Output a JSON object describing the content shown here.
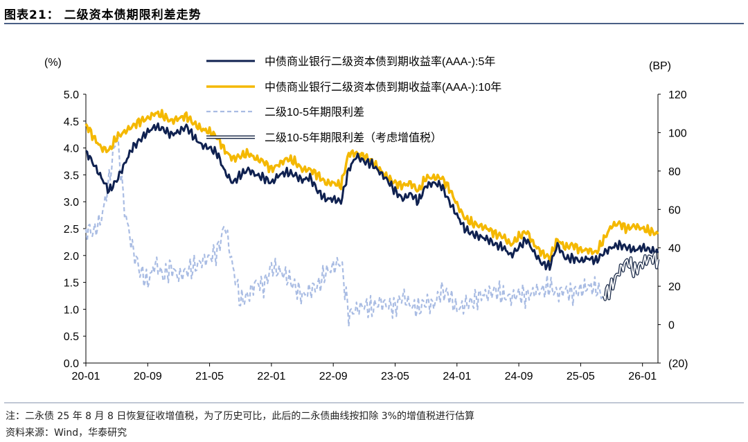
{
  "header": {
    "title": "图表21：  二级资本债期限利差走势"
  },
  "footer": {
    "note": "注：二永债 25 年 8 月 8 日恢复征收增值税，为了历史可比，此后的二永债曲线按扣除 3%的增值税进行估算",
    "source": "资料来源：Wind，华泰研究"
  },
  "colors": {
    "y5": "#0f2150",
    "y10": "#f4b800",
    "spread": "#a9bce3",
    "spread_tax_fill": "#ffffff",
    "spread_tax_edge": "#23324f",
    "title_rule": "#4a5f85"
  },
  "chart_data": {
    "type": "line",
    "left_unit_label": "(%)",
    "right_unit_label": "(BP)",
    "left_axis": {
      "min": 0,
      "max": 5,
      "ticks": [
        "0.0",
        "0.5",
        "1.0",
        "1.5",
        "2.0",
        "2.5",
        "3.0",
        "3.5",
        "4.0",
        "4.5",
        "5.0"
      ]
    },
    "right_axis": {
      "min": -20,
      "max": 120,
      "ticks": [
        "(20)",
        "0",
        "20",
        "40",
        "60",
        "80",
        "100",
        "120"
      ]
    },
    "x_tick_labels": [
      "20-01",
      "20-09",
      "21-05",
      "22-01",
      "22-09",
      "23-05",
      "24-01",
      "24-09",
      "25-05",
      "26-01"
    ],
    "x_range": [
      "2020-01",
      "2026-03"
    ],
    "series": [
      {
        "name": "中债商业银行二级资本债到期收益率(AAA-):5年",
        "axis": "left",
        "style": "solid-navy",
        "points": [
          [
            "2020-01",
            3.95
          ],
          [
            "2020-02",
            3.7
          ],
          [
            "2020-03",
            3.45
          ],
          [
            "2020-04",
            3.2
          ],
          [
            "2020-05",
            3.4
          ],
          [
            "2020-06",
            3.7
          ],
          [
            "2020-07",
            4.0
          ],
          [
            "2020-08",
            4.15
          ],
          [
            "2020-09",
            4.3
          ],
          [
            "2020-10",
            4.4
          ],
          [
            "2020-11",
            4.35
          ],
          [
            "2020-12",
            4.25
          ],
          [
            "2021-01",
            4.3
          ],
          [
            "2021-02",
            4.4
          ],
          [
            "2021-03",
            4.2
          ],
          [
            "2021-04",
            4.05
          ],
          [
            "2021-05",
            4.0
          ],
          [
            "2021-06",
            3.9
          ],
          [
            "2021-07",
            3.55
          ],
          [
            "2021-08",
            3.35
          ],
          [
            "2021-09",
            3.5
          ],
          [
            "2021-10",
            3.6
          ],
          [
            "2021-11",
            3.5
          ],
          [
            "2021-12",
            3.45
          ],
          [
            "2022-01",
            3.35
          ],
          [
            "2022-02",
            3.5
          ],
          [
            "2022-03",
            3.55
          ],
          [
            "2022-04",
            3.5
          ],
          [
            "2022-05",
            3.4
          ],
          [
            "2022-06",
            3.45
          ],
          [
            "2022-07",
            3.2
          ],
          [
            "2022-08",
            3.05
          ],
          [
            "2022-09",
            3.05
          ],
          [
            "2022-10",
            3.0
          ],
          [
            "2022-11",
            3.6
          ],
          [
            "2022-12",
            3.85
          ],
          [
            "2023-01",
            3.75
          ],
          [
            "2023-02",
            3.7
          ],
          [
            "2023-03",
            3.55
          ],
          [
            "2023-04",
            3.4
          ],
          [
            "2023-05",
            3.2
          ],
          [
            "2023-06",
            3.05
          ],
          [
            "2023-07",
            3.15
          ],
          [
            "2023-08",
            3.0
          ],
          [
            "2023-09",
            3.3
          ],
          [
            "2023-10",
            3.35
          ],
          [
            "2023-11",
            3.3
          ],
          [
            "2023-12",
            3.0
          ],
          [
            "2024-01",
            2.75
          ],
          [
            "2024-02",
            2.5
          ],
          [
            "2024-03",
            2.4
          ],
          [
            "2024-04",
            2.35
          ],
          [
            "2024-05",
            2.3
          ],
          [
            "2024-06",
            2.2
          ],
          [
            "2024-07",
            2.15
          ],
          [
            "2024-08",
            2.0
          ],
          [
            "2024-09",
            2.15
          ],
          [
            "2024-10",
            2.3
          ],
          [
            "2024-11",
            2.05
          ],
          [
            "2024-12",
            1.85
          ],
          [
            "2025-01",
            1.8
          ],
          [
            "2025-02",
            2.2
          ],
          [
            "2025-03",
            1.95
          ],
          [
            "2025-04",
            1.95
          ],
          [
            "2025-05",
            1.9
          ],
          [
            "2025-06",
            1.95
          ],
          [
            "2025-07",
            1.9
          ],
          [
            "2025-08",
            2.05
          ],
          [
            "2025-09",
            2.15
          ],
          [
            "2025-10",
            2.2
          ],
          [
            "2025-11",
            2.15
          ],
          [
            "2025-12",
            2.1
          ],
          [
            "2026-01",
            2.15
          ],
          [
            "2026-02",
            2.1
          ],
          [
            "2026-03",
            2.05
          ]
        ]
      },
      {
        "name": "中债商业银行二级资本债到期收益率(AAA-):10年",
        "axis": "left",
        "style": "solid-gold",
        "points": [
          [
            "2020-01",
            4.45
          ],
          [
            "2020-02",
            4.2
          ],
          [
            "2020-03",
            4.0
          ],
          [
            "2020-04",
            3.95
          ],
          [
            "2020-05",
            4.2
          ],
          [
            "2020-06",
            4.3
          ],
          [
            "2020-07",
            4.4
          ],
          [
            "2020-08",
            4.5
          ],
          [
            "2020-09",
            4.55
          ],
          [
            "2020-10",
            4.65
          ],
          [
            "2020-11",
            4.6
          ],
          [
            "2020-12",
            4.5
          ],
          [
            "2021-01",
            4.55
          ],
          [
            "2021-02",
            4.6
          ],
          [
            "2021-03",
            4.45
          ],
          [
            "2021-04",
            4.35
          ],
          [
            "2021-05",
            4.3
          ],
          [
            "2021-06",
            4.2
          ],
          [
            "2021-07",
            3.95
          ],
          [
            "2021-08",
            3.8
          ],
          [
            "2021-09",
            3.85
          ],
          [
            "2021-10",
            3.9
          ],
          [
            "2021-11",
            3.8
          ],
          [
            "2021-12",
            3.75
          ],
          [
            "2022-01",
            3.6
          ],
          [
            "2022-02",
            3.7
          ],
          [
            "2022-03",
            3.8
          ],
          [
            "2022-04",
            3.75
          ],
          [
            "2022-05",
            3.6
          ],
          [
            "2022-06",
            3.6
          ],
          [
            "2022-07",
            3.5
          ],
          [
            "2022-08",
            3.35
          ],
          [
            "2022-09",
            3.35
          ],
          [
            "2022-10",
            3.3
          ],
          [
            "2022-11",
            3.9
          ],
          [
            "2022-12",
            3.9
          ],
          [
            "2023-01",
            3.85
          ],
          [
            "2023-02",
            3.75
          ],
          [
            "2023-03",
            3.6
          ],
          [
            "2023-04",
            3.45
          ],
          [
            "2023-05",
            3.35
          ],
          [
            "2023-06",
            3.3
          ],
          [
            "2023-07",
            3.35
          ],
          [
            "2023-08",
            3.2
          ],
          [
            "2023-09",
            3.45
          ],
          [
            "2023-10",
            3.45
          ],
          [
            "2023-11",
            3.45
          ],
          [
            "2023-12",
            3.25
          ],
          [
            "2024-01",
            2.95
          ],
          [
            "2024-02",
            2.7
          ],
          [
            "2024-03",
            2.6
          ],
          [
            "2024-04",
            2.55
          ],
          [
            "2024-05",
            2.5
          ],
          [
            "2024-06",
            2.4
          ],
          [
            "2024-07",
            2.35
          ],
          [
            "2024-08",
            2.2
          ],
          [
            "2024-09",
            2.35
          ],
          [
            "2024-10",
            2.45
          ],
          [
            "2024-11",
            2.2
          ],
          [
            "2024-12",
            2.05
          ],
          [
            "2025-01",
            1.95
          ],
          [
            "2025-02",
            2.3
          ],
          [
            "2025-03",
            2.15
          ],
          [
            "2025-04",
            2.2
          ],
          [
            "2025-05",
            2.1
          ],
          [
            "2025-06",
            2.1
          ],
          [
            "2025-07",
            2.05
          ],
          [
            "2025-08",
            2.3
          ],
          [
            "2025-09",
            2.55
          ],
          [
            "2025-10",
            2.6
          ],
          [
            "2025-11",
            2.5
          ],
          [
            "2025-12",
            2.55
          ],
          [
            "2026-01",
            2.5
          ],
          [
            "2026-02",
            2.45
          ],
          [
            "2026-03",
            2.4
          ]
        ]
      },
      {
        "name": "二级10-5年期限利差",
        "axis": "right",
        "style": "dashed-lightblue",
        "points": [
          [
            "2020-01",
            50
          ],
          [
            "2020-02",
            48
          ],
          [
            "2020-03",
            55
          ],
          [
            "2020-04",
            75
          ],
          [
            "2020-05",
            100
          ],
          [
            "2020-06",
            60
          ],
          [
            "2020-07",
            40
          ],
          [
            "2020-08",
            28
          ],
          [
            "2020-09",
            22
          ],
          [
            "2020-10",
            32
          ],
          [
            "2020-11",
            25
          ],
          [
            "2020-12",
            30
          ],
          [
            "2021-01",
            25
          ],
          [
            "2021-02",
            28
          ],
          [
            "2021-03",
            30
          ],
          [
            "2021-04",
            33
          ],
          [
            "2021-05",
            35
          ],
          [
            "2021-06",
            38
          ],
          [
            "2021-07",
            52
          ],
          [
            "2021-08",
            30
          ],
          [
            "2021-09",
            12
          ],
          [
            "2021-10",
            15
          ],
          [
            "2021-11",
            22
          ],
          [
            "2021-12",
            20
          ],
          [
            "2022-01",
            30
          ],
          [
            "2022-02",
            28
          ],
          [
            "2022-03",
            25
          ],
          [
            "2022-04",
            20
          ],
          [
            "2022-05",
            15
          ],
          [
            "2022-06",
            18
          ],
          [
            "2022-07",
            20
          ],
          [
            "2022-08",
            27
          ],
          [
            "2022-09",
            30
          ],
          [
            "2022-10",
            33
          ],
          [
            "2022-11",
            5
          ],
          [
            "2022-12",
            8
          ],
          [
            "2023-01",
            10
          ],
          [
            "2023-02",
            8
          ],
          [
            "2023-03",
            12
          ],
          [
            "2023-04",
            10
          ],
          [
            "2023-05",
            9
          ],
          [
            "2023-06",
            15
          ],
          [
            "2023-07",
            10
          ],
          [
            "2023-08",
            8
          ],
          [
            "2023-09",
            12
          ],
          [
            "2023-10",
            10
          ],
          [
            "2023-11",
            18
          ],
          [
            "2023-12",
            15
          ],
          [
            "2024-01",
            8
          ],
          [
            "2024-02",
            10
          ],
          [
            "2024-03",
            12
          ],
          [
            "2024-04",
            15
          ],
          [
            "2024-05",
            16
          ],
          [
            "2024-06",
            18
          ],
          [
            "2024-07",
            15
          ],
          [
            "2024-08",
            14
          ],
          [
            "2024-09",
            16
          ],
          [
            "2024-10",
            15
          ],
          [
            "2024-11",
            17
          ],
          [
            "2024-12",
            18
          ],
          [
            "2025-01",
            20
          ],
          [
            "2025-02",
            16
          ],
          [
            "2025-03",
            18
          ],
          [
            "2025-04",
            16
          ],
          [
            "2025-05",
            18
          ],
          [
            "2025-06",
            20
          ],
          [
            "2025-07",
            19
          ],
          [
            "2025-08",
            15
          ]
        ]
      },
      {
        "name": "二级10-5年期限利差（考虑增值税）",
        "axis": "right",
        "style": "double-outline",
        "points": [
          [
            "2025-08",
            15
          ],
          [
            "2025-09",
            20
          ],
          [
            "2025-10",
            28
          ],
          [
            "2025-11",
            33
          ],
          [
            "2025-12",
            28
          ],
          [
            "2026-01",
            32
          ],
          [
            "2026-02",
            35
          ],
          [
            "2026-03",
            34
          ]
        ]
      }
    ]
  }
}
